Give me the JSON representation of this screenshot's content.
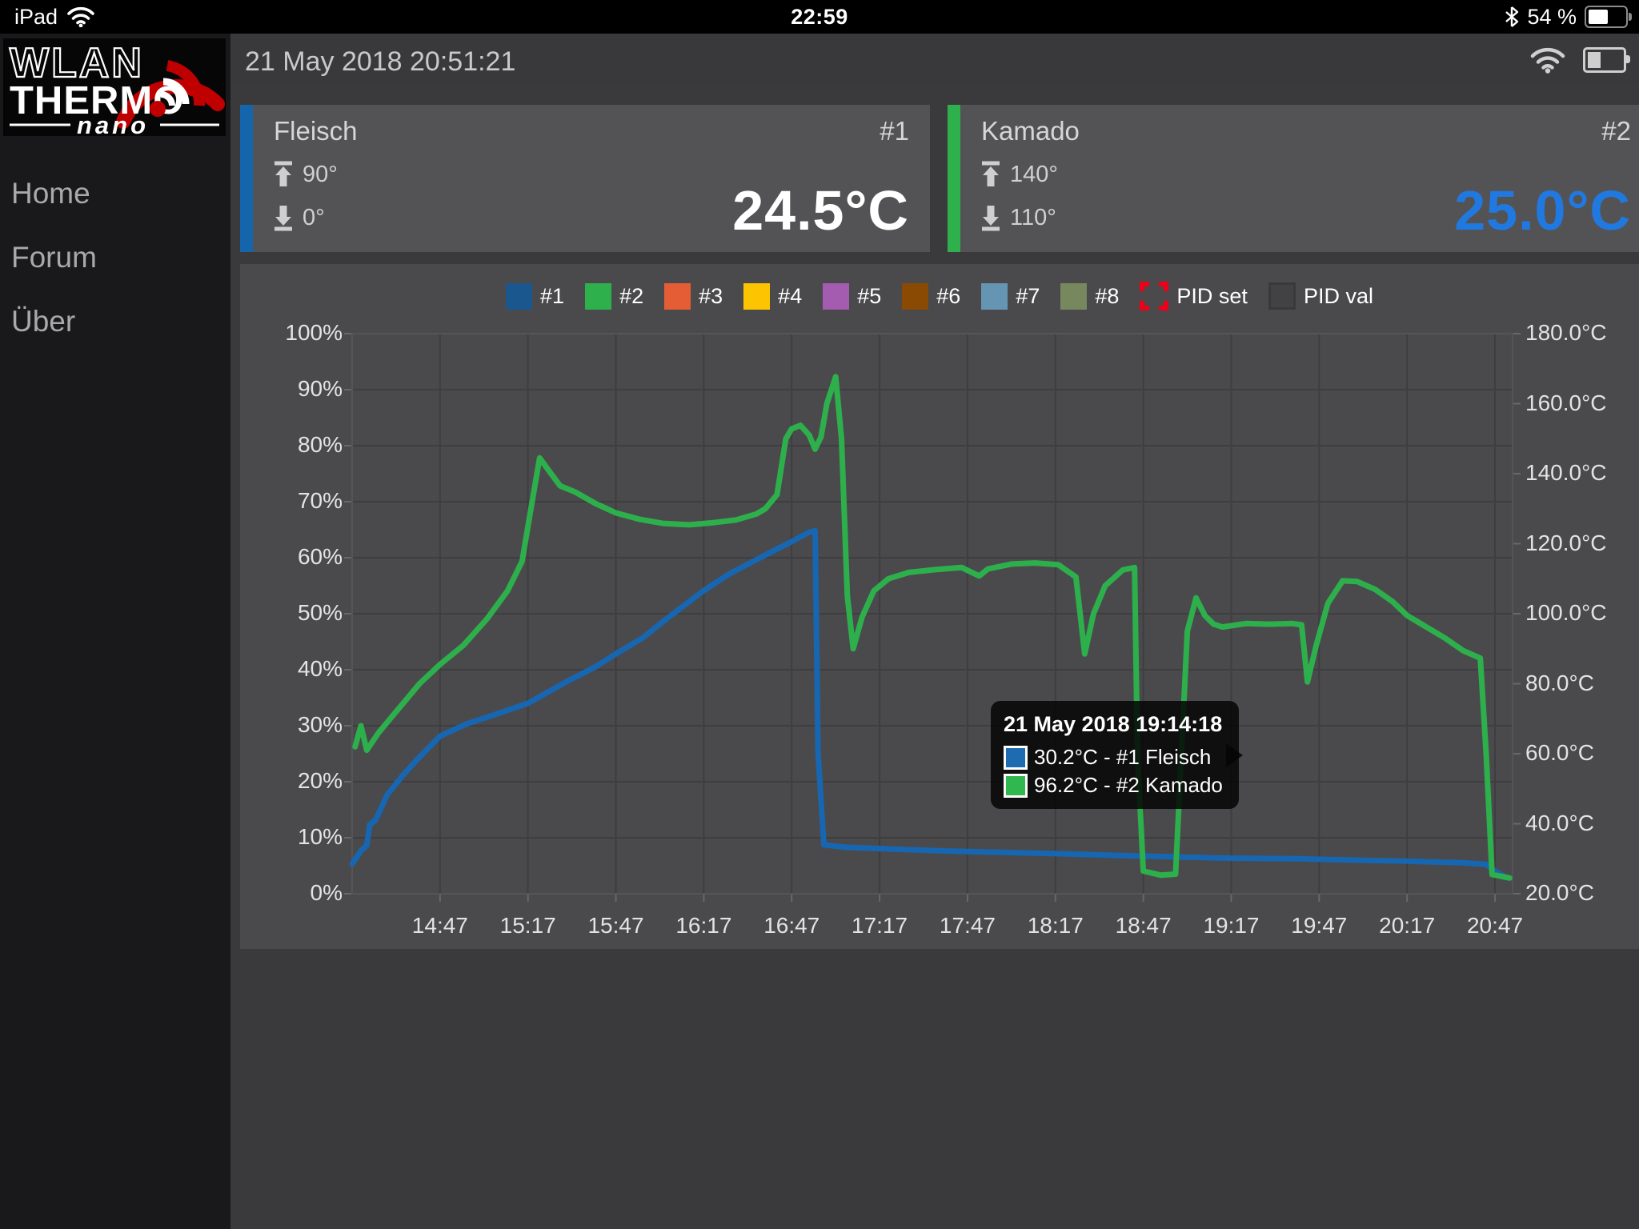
{
  "status_bar": {
    "device": "iPad",
    "time": "22:59",
    "battery_label": "54 %",
    "battery_percent": 54
  },
  "sidebar": {
    "logo": {
      "line1": "WLAN",
      "line2": "THERMO",
      "line3": "nano"
    },
    "menu": [
      {
        "label": "Home"
      },
      {
        "label": "Forum"
      },
      {
        "label": "Über"
      }
    ]
  },
  "header": {
    "datetime": "21 May 2018 20:51:21",
    "battery_percent": 40
  },
  "channels": [
    {
      "name": "Fleisch",
      "number": "#1",
      "max": "90°",
      "min": "0°",
      "temp": "24.5°C",
      "color": "#1565ad",
      "temp_color": "#ffffff"
    },
    {
      "name": "Kamado",
      "number": "#2",
      "max": "140°",
      "min": "110°",
      "temp": "25.0°C",
      "color": "#2eb14d",
      "temp_color": "#2079e0"
    }
  ],
  "chart_data": {
    "type": "line",
    "title": "",
    "grid": true,
    "legend_position": "top",
    "legend": [
      {
        "label": "#1",
        "color": "#1a578f",
        "swatch": "solid"
      },
      {
        "label": "#2",
        "color": "#2eb04d",
        "swatch": "solid"
      },
      {
        "label": "#3",
        "color": "#e55d35",
        "swatch": "solid"
      },
      {
        "label": "#4",
        "color": "#fdc501",
        "swatch": "solid"
      },
      {
        "label": "#5",
        "color": "#a35cb0",
        "swatch": "solid"
      },
      {
        "label": "#6",
        "color": "#8a4a03",
        "swatch": "solid"
      },
      {
        "label": "#7",
        "color": "#6695b4",
        "swatch": "solid"
      },
      {
        "label": "#8",
        "color": "#77885e",
        "swatch": "solid"
      },
      {
        "label": "PID set",
        "color": "#ee0019",
        "swatch": "dashed"
      },
      {
        "label": "PID val",
        "color": "#424244",
        "swatch": "outline"
      }
    ],
    "x_range": [
      "14:17",
      "20:53"
    ],
    "x_ticks": [
      "14:47",
      "15:17",
      "15:47",
      "16:17",
      "16:47",
      "17:17",
      "17:47",
      "18:17",
      "18:47",
      "19:17",
      "19:47",
      "20:17",
      "20:47"
    ],
    "y_left": {
      "ticks": [
        "100%",
        "90%",
        "80%",
        "70%",
        "60%",
        "50%",
        "40%",
        "30%",
        "20%",
        "10%",
        "0%"
      ],
      "min": 0,
      "max": 100
    },
    "y_right": {
      "ticks": [
        "180.0°C",
        "160.0°C",
        "140.0°C",
        "120.0°C",
        "100.0°C",
        "80.0°C",
        "60.0°C",
        "40.0°C",
        "20.0°C"
      ],
      "min": 20,
      "max": 180
    },
    "series": [
      {
        "name": "#1 Fleisch",
        "color": "#1766b2",
        "unit": "°C",
        "points": [
          [
            "14:17",
            28.5
          ],
          [
            "14:20",
            32.3
          ],
          [
            "14:22",
            33.8
          ],
          [
            "14:23",
            39.8
          ],
          [
            "14:25",
            41.0
          ],
          [
            "14:29",
            48.3
          ],
          [
            "14:34",
            53.5
          ],
          [
            "14:39",
            58.2
          ],
          [
            "14:47",
            65.0
          ],
          [
            "14:56",
            68.5
          ],
          [
            "15:05",
            71.0
          ],
          [
            "15:17",
            74.4
          ],
          [
            "15:30",
            80.5
          ],
          [
            "15:40",
            84.8
          ],
          [
            "15:47",
            88.5
          ],
          [
            "15:56",
            93.0
          ],
          [
            "16:05",
            99.0
          ],
          [
            "16:17",
            106.6
          ],
          [
            "16:26",
            111.5
          ],
          [
            "16:34",
            115.0
          ],
          [
            "16:42",
            118.5
          ],
          [
            "16:48",
            121.0
          ],
          [
            "16:53",
            123.3
          ],
          [
            "16:55",
            123.7
          ],
          [
            "16:56",
            60.0
          ],
          [
            "16:58",
            34.0
          ],
          [
            "17:05",
            33.3
          ],
          [
            "17:20",
            32.8
          ],
          [
            "17:40",
            32.2
          ],
          [
            "18:00",
            31.8
          ],
          [
            "18:20",
            31.4
          ],
          [
            "18:40",
            30.9
          ],
          [
            "19:00",
            30.5
          ],
          [
            "19:14",
            30.2
          ],
          [
            "19:40",
            30.0
          ],
          [
            "20:00",
            29.6
          ],
          [
            "20:17",
            29.3
          ],
          [
            "20:35",
            28.9
          ],
          [
            "20:44",
            28.4
          ],
          [
            "20:47",
            26.5
          ],
          [
            "20:51",
            24.6
          ]
        ]
      },
      {
        "name": "#2 Kamado",
        "color": "#2db04c",
        "unit": "°C",
        "points": [
          [
            "14:18",
            62.0
          ],
          [
            "14:20",
            68.0
          ],
          [
            "14:22",
            61.0
          ],
          [
            "14:26",
            66.0
          ],
          [
            "14:33",
            73.0
          ],
          [
            "14:40",
            80.0
          ],
          [
            "14:47",
            85.5
          ],
          [
            "14:55",
            91.0
          ],
          [
            "15:03",
            98.5
          ],
          [
            "15:10",
            106.5
          ],
          [
            "15:15",
            115.0
          ],
          [
            "15:18",
            130.0
          ],
          [
            "15:21",
            144.5
          ],
          [
            "15:24",
            141.0
          ],
          [
            "15:28",
            136.5
          ],
          [
            "15:33",
            134.8
          ],
          [
            "15:40",
            131.5
          ],
          [
            "15:47",
            128.8
          ],
          [
            "15:55",
            127.0
          ],
          [
            "16:03",
            125.8
          ],
          [
            "16:12",
            125.4
          ],
          [
            "16:20",
            126.0
          ],
          [
            "16:28",
            126.8
          ],
          [
            "16:35",
            128.5
          ],
          [
            "16:38",
            130.0
          ],
          [
            "16:42",
            134.0
          ],
          [
            "16:45",
            150.0
          ],
          [
            "16:47",
            152.8
          ],
          [
            "16:50",
            153.8
          ],
          [
            "16:53",
            151.0
          ],
          [
            "16:55",
            147.0
          ],
          [
            "16:57",
            150.5
          ],
          [
            "16:59",
            160.0
          ],
          [
            "17:02",
            167.7
          ],
          [
            "17:04",
            150.0
          ],
          [
            "17:06",
            105.0
          ],
          [
            "17:08",
            90.0
          ],
          [
            "17:11",
            99.0
          ],
          [
            "17:15",
            106.5
          ],
          [
            "17:20",
            110.0
          ],
          [
            "17:27",
            111.8
          ],
          [
            "17:36",
            112.6
          ],
          [
            "17:45",
            113.2
          ],
          [
            "17:51",
            110.8
          ],
          [
            "17:54",
            112.8
          ],
          [
            "18:02",
            114.2
          ],
          [
            "18:10",
            114.5
          ],
          [
            "18:18",
            114.0
          ],
          [
            "18:24",
            110.5
          ],
          [
            "18:27",
            88.5
          ],
          [
            "18:30",
            100.0
          ],
          [
            "18:34",
            108.0
          ],
          [
            "18:40",
            112.5
          ],
          [
            "18:44",
            113.2
          ],
          [
            "18:45",
            60.0
          ],
          [
            "18:47",
            26.5
          ],
          [
            "18:53",
            25.3
          ],
          [
            "18:58",
            25.6
          ],
          [
            "19:00",
            60.0
          ],
          [
            "19:02",
            95.0
          ],
          [
            "19:05",
            104.5
          ],
          [
            "19:08",
            99.5
          ],
          [
            "19:11",
            97.0
          ],
          [
            "19:14",
            96.2
          ],
          [
            "19:22",
            97.2
          ],
          [
            "19:30",
            97.0
          ],
          [
            "19:38",
            97.2
          ],
          [
            "19:41",
            96.8
          ],
          [
            "19:43",
            80.5
          ],
          [
            "19:46",
            91.0
          ],
          [
            "19:50",
            103.0
          ],
          [
            "19:55",
            109.4
          ],
          [
            "20:00",
            109.2
          ],
          [
            "20:06",
            107.0
          ],
          [
            "20:12",
            103.5
          ],
          [
            "20:17",
            99.5
          ],
          [
            "20:24",
            96.0
          ],
          [
            "20:30",
            93.0
          ],
          [
            "20:36",
            89.5
          ],
          [
            "20:42",
            87.3
          ],
          [
            "20:44",
            60.0
          ],
          [
            "20:46",
            25.5
          ],
          [
            "20:52",
            24.5
          ]
        ]
      }
    ],
    "tooltip": {
      "title": "21 May 2018 19:14:18",
      "rows": [
        {
          "color": "#1e6cb0",
          "text": "30.2°C - #1 Fleisch"
        },
        {
          "color": "#2eb84e",
          "text": "96.2°C - #2 Kamado"
        }
      ]
    }
  }
}
